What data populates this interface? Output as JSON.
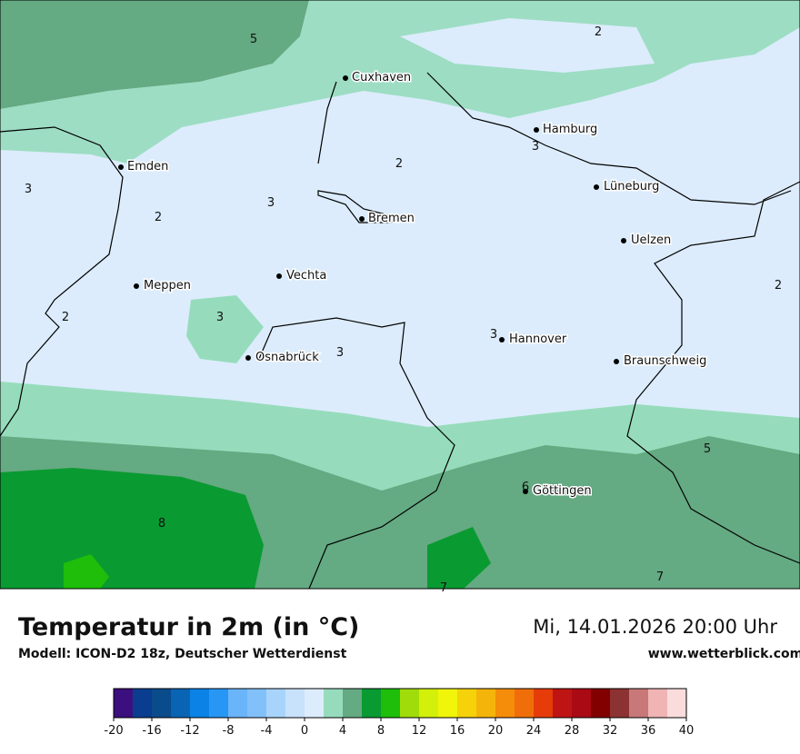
{
  "map": {
    "cities": [
      "Cuxhaven",
      "Hamburg",
      "Emden",
      "Lüneburg",
      "Bremen",
      "Uelzen",
      "Vechta",
      "Meppen",
      "Hannover",
      "Osnabrück",
      "Braunschweig",
      "Göttingen"
    ],
    "isotherm_labels": [
      5,
      2,
      3,
      2,
      3,
      3,
      2,
      2,
      2,
      3,
      3,
      3,
      5,
      6,
      8,
      7,
      7
    ]
  },
  "footer": {
    "title": "Temperatur in 2m (in °C)",
    "subtitle": "Modell: ICON-D2 18z, Deutscher Wetterdienst",
    "datetime": "Mi, 14.01.2026 20:00 Uhr",
    "website": "www.wetterblick.com"
  },
  "colorbar": {
    "ticks": [
      -20,
      -16,
      -12,
      -8,
      -4,
      0,
      4,
      8,
      12,
      16,
      20,
      24,
      28,
      32,
      36,
      40
    ],
    "colors": [
      "#3b0f7d",
      "#0a3d8f",
      "#0a4b8c",
      "#0a64b4",
      "#0a82e6",
      "#2896f5",
      "#6ab4fa",
      "#82c0fa",
      "#a8d4fc",
      "#c8e2fc",
      "#dcecfc",
      "#96dcbc",
      "#64aa82",
      "#0a9a32",
      "#1ebe0a",
      "#a0dc0a",
      "#d2f00a",
      "#f0f50a",
      "#f5d20a",
      "#f5b40a",
      "#f58c0a",
      "#f06e0a",
      "#e63c0a",
      "#be1414",
      "#aa0a14",
      "#820000",
      "#8c3232",
      "#c87878",
      "#f0b4b4",
      "#fadcdc"
    ]
  }
}
